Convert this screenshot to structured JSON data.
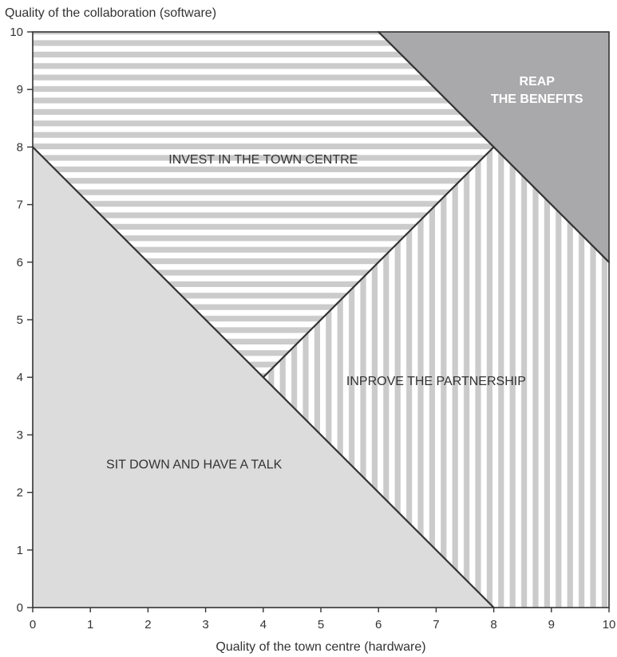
{
  "chart_data": {
    "type": "area",
    "title": "",
    "xlabel": "Quality of the  town centre (hardware)",
    "ylabel": "Quality of the  collaboration (software)",
    "xlim": [
      0,
      10
    ],
    "ylim": [
      0,
      10
    ],
    "x_ticks": [
      "0",
      "1",
      "2",
      "3",
      "4",
      "5",
      "6",
      "7",
      "8",
      "9",
      "10"
    ],
    "y_ticks": [
      "0",
      "1",
      "2",
      "3",
      "4",
      "5",
      "6",
      "7",
      "8",
      "9",
      "10"
    ],
    "regions": [
      {
        "name": "SIT DOWN AND HAVE A TALK",
        "fill": "solid-light-grey",
        "polygon": [
          [
            0,
            0
          ],
          [
            8,
            0
          ],
          [
            4,
            4
          ],
          [
            0,
            8
          ]
        ],
        "label_at": [
          2.8,
          2.5
        ]
      },
      {
        "name": "INVEST IN THE TOWN CENTRE",
        "fill": "horizontal-stripes",
        "polygon": [
          [
            0,
            8
          ],
          [
            4,
            4
          ],
          [
            8,
            8
          ],
          [
            6,
            10
          ],
          [
            0,
            10
          ]
        ],
        "label_at": [
          4,
          7.8
        ]
      },
      {
        "name": "INPROVE THE PARTNERSHIP",
        "fill": "vertical-stripes",
        "polygon": [
          [
            8,
            0
          ],
          [
            10,
            0
          ],
          [
            10,
            6
          ],
          [
            8,
            8
          ],
          [
            4,
            4
          ]
        ],
        "label_at": [
          7,
          3.95
        ]
      },
      {
        "name": "REAP\nTHE BENEFITS",
        "lines": [
          "REAP",
          "THE BENEFITS"
        ],
        "fill": "solid-dark-grey",
        "polygon": [
          [
            6,
            10
          ],
          [
            10,
            10
          ],
          [
            10,
            6
          ]
        ],
        "label_at": [
          8.75,
          9.0
        ]
      }
    ],
    "boundaries": [
      [
        [
          0,
          8
        ],
        [
          8,
          0
        ]
      ],
      [
        [
          4,
          4
        ],
        [
          8,
          8
        ]
      ],
      [
        [
          6,
          10
        ],
        [
          10,
          6
        ]
      ]
    ],
    "grid": false,
    "legend": "none"
  },
  "colors": {
    "axis": "#333333",
    "boundary": "#333333",
    "light_fill": "#dcdcdd",
    "stripe": "#cbcbcb",
    "dark_fill": "#a9a9ab",
    "text": "#333333",
    "dark_region_text": "#ffffff"
  }
}
